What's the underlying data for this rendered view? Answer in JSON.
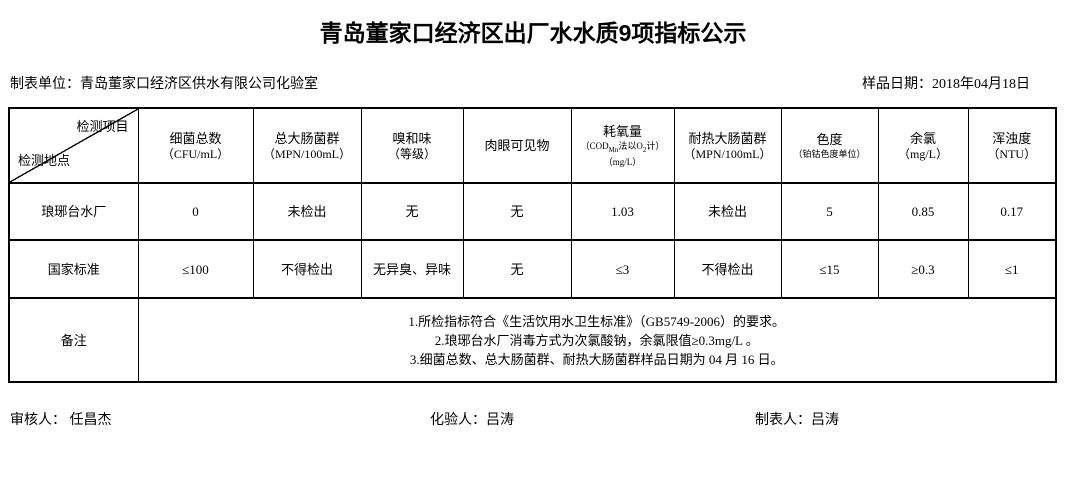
{
  "title": "青岛董家口经济区出厂水水质9项指标公示",
  "meta": {
    "prepared_by": "制表单位：青岛董家口经济区供水有限公司化验室",
    "sample_date": "样品日期：2018年04月18日"
  },
  "table": {
    "corner": {
      "top_right": "检测项目",
      "bottom_left": "检测地点"
    },
    "columns": [
      {
        "name": "细菌总数",
        "unit": "（CFU/mL）"
      },
      {
        "name": "总大肠菌群",
        "unit": "（MPN/100mL）"
      },
      {
        "name": "嗅和味",
        "unit": "（等级）"
      },
      {
        "name": "肉眼可见物",
        "unit": ""
      },
      {
        "name": "耗氧量",
        "unit_html": "（COD<sub>Mn</sub>法以O<sub>2</sub>计）（mg/L）"
      },
      {
        "name": "耐热大肠菌群",
        "unit": "（MPN/100mL）"
      },
      {
        "name": "色度",
        "unit": "（铂钴色度单位）"
      },
      {
        "name": "余氯",
        "unit": "（mg/L）"
      },
      {
        "name": "浑浊度",
        "unit": "（NTU）"
      }
    ],
    "rows": [
      {
        "label": "琅琊台水厂",
        "values": [
          "0",
          "未检出",
          "无",
          "无",
          "1.03",
          "未检出",
          "5",
          "0.85",
          "0.17"
        ]
      },
      {
        "label": "国家标准",
        "values": [
          "≤100",
          "不得检出",
          "无异臭、异味",
          "无",
          "≤3",
          "不得检出",
          "≤15",
          "≥0.3",
          "≤1"
        ]
      }
    ],
    "remark": {
      "label": "备注",
      "lines": [
        "1.所检指标符合《生活饮用水卫生标准》（GB5749-2006）的要求。",
        "2.琅琊台水厂消毒方式为次氯酸钠，余氯限值≥0.3mg/L 。",
        "3.细菌总数、总大肠菌群、耐热大肠菌群样品日期为 04 月 16 日。"
      ]
    }
  },
  "footer": {
    "reviewer": "审核人： 任昌杰",
    "tester": "化验人：吕涛",
    "preparer": "制表人：吕涛"
  }
}
